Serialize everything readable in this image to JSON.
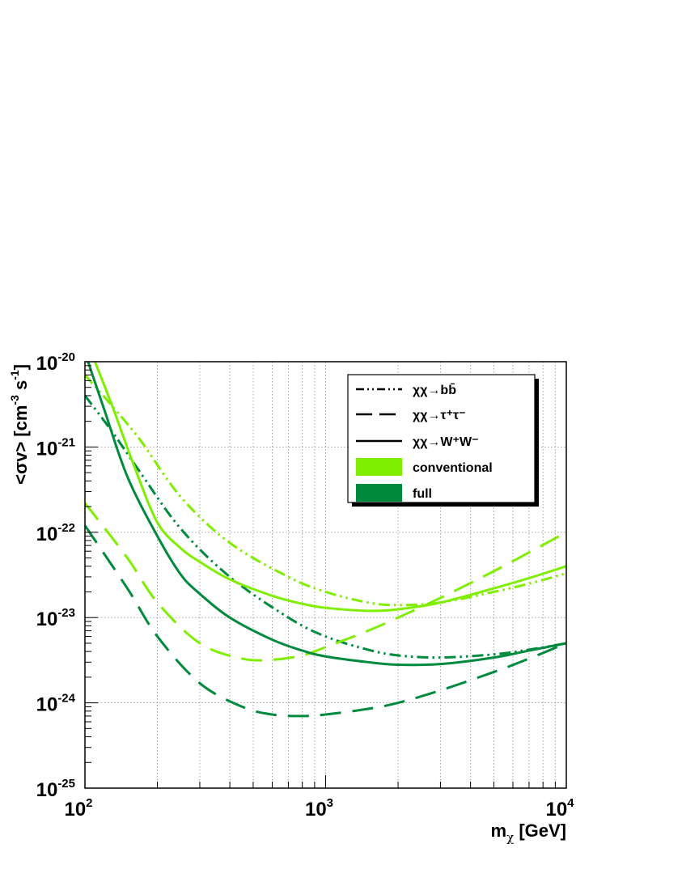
{
  "chart_data": {
    "type": "line",
    "title": "",
    "xlabel": "m_χ [GeV]",
    "ylabel": "<σv> [cm^-3 s^-1]",
    "x_scale": "log",
    "y_scale": "log",
    "xlim": [
      100,
      10000
    ],
    "ylim": [
      1e-25,
      1e-20
    ],
    "grid": true,
    "legend_position": "top-right",
    "x_ticks": [
      {
        "base": "10",
        "exp": "2"
      },
      {
        "base": "10",
        "exp": "3"
      },
      {
        "base": "10",
        "exp": "4"
      }
    ],
    "y_ticks": [
      {
        "base": "10",
        "exp": "-25"
      },
      {
        "base": "10",
        "exp": "-24"
      },
      {
        "base": "10",
        "exp": "-23"
      },
      {
        "base": "10",
        "exp": "-22"
      },
      {
        "base": "10",
        "exp": "-21"
      },
      {
        "base": "10",
        "exp": "-20"
      }
    ],
    "colors": {
      "conventional": "#80ee00",
      "full": "#008a3e"
    },
    "legend": {
      "channels": [
        {
          "label": "χχ→bb̄",
          "style": "dash-dot-dot"
        },
        {
          "label": "χχ→τ⁺τ⁻",
          "style": "long-dash"
        },
        {
          "label": "χχ→W⁺W⁻",
          "style": "solid"
        }
      ],
      "models": [
        {
          "label": "conventional",
          "color": "#80ee00"
        },
        {
          "label": "full",
          "color": "#008a3e"
        }
      ]
    },
    "series": [
      {
        "channel": "bb",
        "model": "conventional",
        "style": "dash-dot-dot",
        "x": [
          100,
          130,
          170,
          250,
          400,
          700,
          1000,
          1500,
          2000,
          3000,
          5000,
          7000,
          10000
        ],
        "y": [
          7e-21,
          3e-21,
          1.2e-21,
          2.6e-22,
          7.5e-23,
          3e-23,
          2e-23,
          1.5e-23,
          1.4e-23,
          1.5e-23,
          2e-23,
          2.5e-23,
          3.3e-23
        ]
      },
      {
        "channel": "bb",
        "model": "full",
        "style": "dash-dot-dot",
        "x": [
          100,
          130,
          170,
          250,
          400,
          700,
          1000,
          1500,
          2000,
          3000,
          5000,
          7000,
          10000
        ],
        "y": [
          4e-21,
          1.5e-21,
          5e-22,
          1.1e-22,
          3e-23,
          1e-23,
          6e-24,
          4.2e-24,
          3.6e-24,
          3.4e-24,
          3.7e-24,
          4.2e-24,
          5e-24
        ]
      },
      {
        "channel": "tautau",
        "model": "conventional",
        "style": "long-dash",
        "x": [
          100,
          150,
          200,
          300,
          450,
          600,
          800,
          1000,
          1500,
          2000,
          3000,
          5000,
          7000,
          10000
        ],
        "y": [
          2.2e-22,
          5e-23,
          1.5e-23,
          5e-24,
          3.3e-24,
          3.2e-24,
          3.6e-24,
          4.5e-24,
          7e-24,
          1e-23,
          1.7e-23,
          3.5e-23,
          5.8e-23,
          1e-22
        ]
      },
      {
        "channel": "tautau",
        "model": "full",
        "style": "long-dash",
        "x": [
          100,
          150,
          200,
          300,
          450,
          600,
          800,
          1000,
          1500,
          2000,
          3000,
          5000,
          7000,
          10000
        ],
        "y": [
          1.2e-22,
          2.2e-23,
          6e-24,
          1.7e-24,
          9e-25,
          7.3e-25,
          7e-25,
          7.3e-25,
          8.5e-25,
          1e-24,
          1.4e-24,
          2.3e-24,
          3.3e-24,
          5e-24
        ]
      },
      {
        "channel": "WW",
        "model": "conventional",
        "style": "solid",
        "x": [
          110,
          130,
          160,
          200,
          250,
          300,
          400,
          600,
          800,
          1000,
          1500,
          2000,
          3000,
          5000,
          7000,
          10000
        ],
        "y": [
          1e-20,
          3e-21,
          6e-22,
          1.3e-22,
          6.5e-23,
          4.5e-23,
          2.8e-23,
          1.8e-23,
          1.45e-23,
          1.3e-23,
          1.2e-23,
          1.25e-23,
          1.5e-23,
          2.2e-23,
          2.9e-23,
          4e-23
        ]
      },
      {
        "channel": "WW",
        "model": "full",
        "style": "solid",
        "x": [
          103,
          120,
          150,
          200,
          250,
          300,
          400,
          600,
          800,
          1000,
          1500,
          2000,
          3000,
          5000,
          7000,
          10000
        ],
        "y": [
          1e-20,
          2.8e-21,
          4.5e-22,
          9e-23,
          3.2e-23,
          1.9e-23,
          1e-23,
          5.5e-24,
          4.1e-24,
          3.5e-24,
          3e-24,
          2.8e-24,
          2.85e-24,
          3.4e-24,
          4.1e-24,
          5e-24
        ]
      }
    ]
  }
}
